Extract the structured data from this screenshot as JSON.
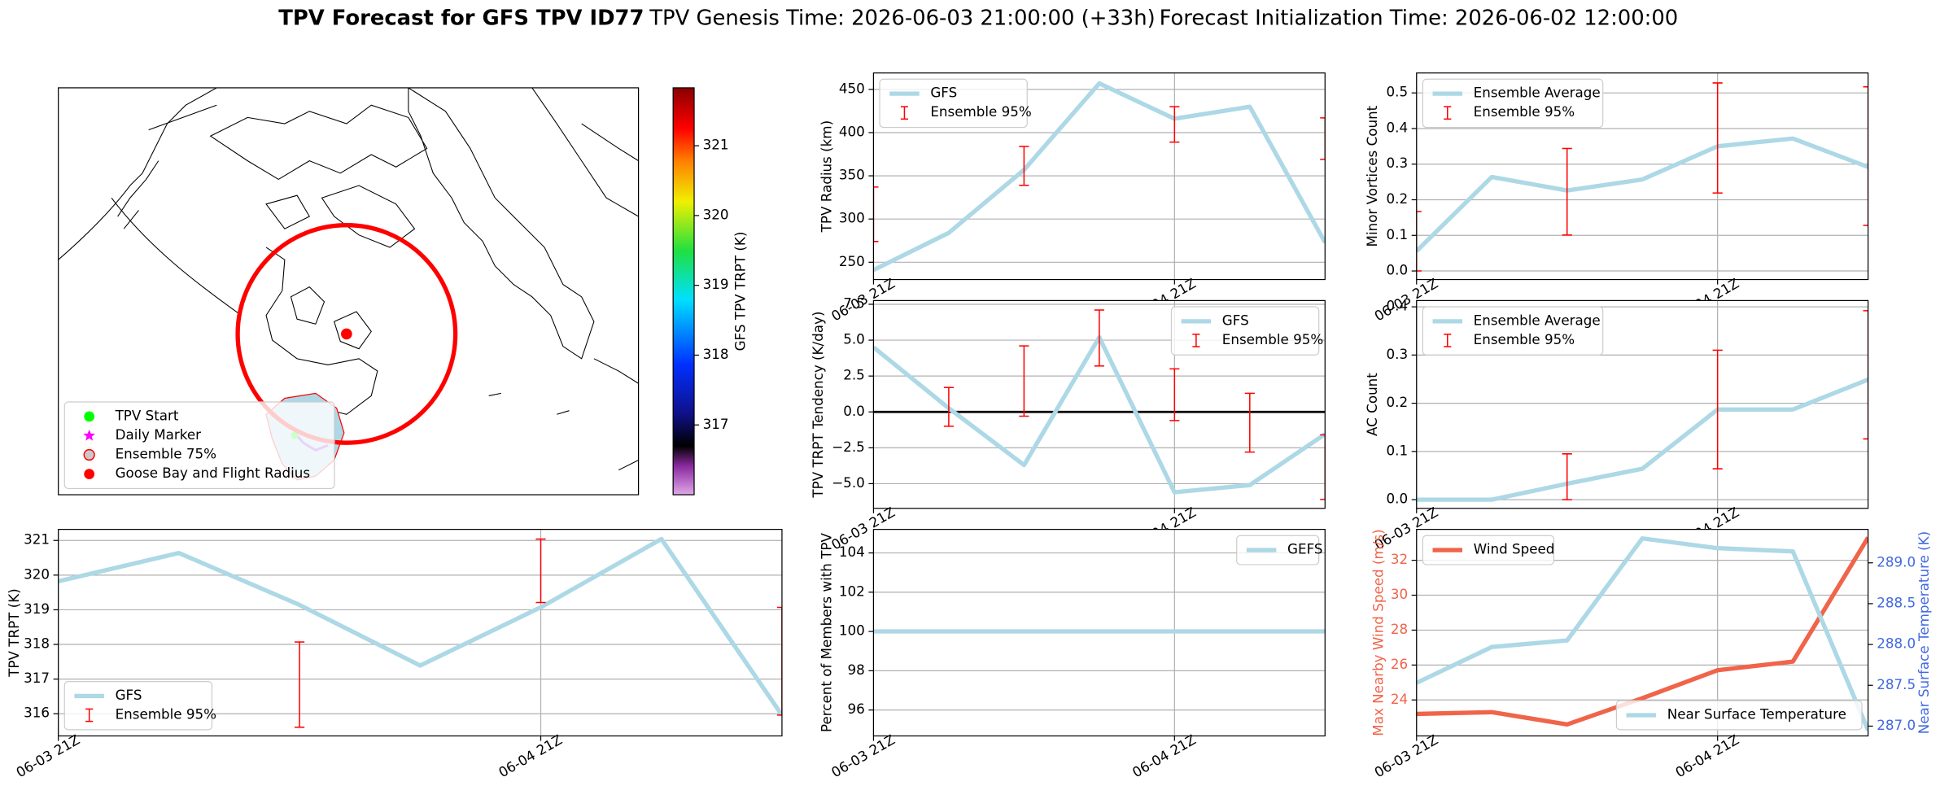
{
  "header": {
    "title": "TPV Forecast for GFS TPV ID77",
    "genesis": "TPV Genesis Time: 2026-06-03 21:00:00 (+33h)",
    "initialization": "Forecast Initialization Time: 2026-06-02 12:00:00"
  },
  "chart_data": [
    {
      "type": "map",
      "legend": "lower left",
      "series": [
        {
          "name": "TPV Start",
          "color": "#00ff00",
          "marker": "circle"
        },
        {
          "name": "Daily Marker",
          "color": "#ff00ff",
          "marker": "star"
        },
        {
          "name": "Ensemble 75%",
          "color": "#c9c9c9",
          "edgecolor": "#ff0000",
          "marker": "circle"
        },
        {
          "name": "Goose Bay and Flight Radius",
          "color": "#ff0000",
          "marker": "circle"
        }
      ],
      "colorbar": {
        "label": "GFS TPV TRPT (K)",
        "lim": [
          316.0,
          321.83
        ],
        "ticks": [
          317,
          318,
          319,
          320,
          321
        ]
      }
    },
    {
      "type": "line",
      "ylabel": "TPV Radius (km)",
      "categories": [
        "06-03 21Z",
        null,
        null,
        null,
        "06-04 21Z",
        null,
        null
      ],
      "legend": "upper left",
      "grid": true,
      "series": [
        {
          "name": "GFS",
          "color": "#add8e6",
          "values": [
            241,
            284,
            357,
            457,
            416,
            430,
            273
          ]
        },
        {
          "name": "Ensemble 95%",
          "type": "errorbar",
          "color": "#ff0000",
          "lower": [
            274,
            null,
            339,
            null,
            389,
            null,
            369
          ],
          "upper": [
            337,
            null,
            384,
            null,
            430,
            null,
            417
          ]
        }
      ],
      "ylim": [
        230,
        469
      ],
      "yticks": [
        250,
        300,
        350,
        400,
        450
      ]
    },
    {
      "type": "line",
      "ylabel": "Minor Vortices Count",
      "categories": [
        "06-03 21Z",
        null,
        null,
        null,
        "06-04 21Z",
        null,
        null
      ],
      "legend": "upper left",
      "grid": true,
      "series": [
        {
          "name": "Ensemble Average",
          "color": "#add8e6",
          "values": [
            0.056,
            0.264,
            0.226,
            0.257,
            0.35,
            0.372,
            0.292
          ]
        },
        {
          "name": "Ensemble 95%",
          "type": "errorbar",
          "color": "#ff0000",
          "lower": [
            0,
            null,
            0.101,
            null,
            0.219,
            null,
            0.128
          ],
          "upper": [
            0.167,
            null,
            0.344,
            null,
            0.528,
            null,
            0.517
          ]
        }
      ],
      "ylim": [
        -0.024,
        0.556
      ],
      "yticks": [
        {
          "value": 0,
          "label": "0.0"
        },
        0.1,
        0.2,
        0.3,
        0.4,
        0.5
      ]
    },
    {
      "type": "line",
      "ylabel": "TPV TRPT Tendency (K/day)",
      "categories": [
        "06-03 21Z",
        null,
        null,
        null,
        "06-04 21Z",
        null,
        null
      ],
      "legend": "upper right",
      "grid": true,
      "hline": 0,
      "series": [
        {
          "name": "GFS",
          "color": "#add8e6",
          "values": [
            4.5,
            0.26,
            -3.7,
            5.2,
            -5.6,
            -5.1,
            -1.55
          ]
        },
        {
          "name": "Ensemble 95%",
          "type": "errorbar",
          "color": "#ff0000",
          "lower": [
            null,
            -1.0,
            -0.3,
            3.2,
            -0.6,
            -2.8,
            -6.1
          ],
          "upper": [
            null,
            1.7,
            4.6,
            7.1,
            3.0,
            1.3,
            -1.6
          ]
        }
      ],
      "ylim": [
        -6.72,
        7.76
      ],
      "yticks": [
        {
          "value": -5,
          "label": "−5.0"
        },
        {
          "value": -2.5,
          "label": "−2.5"
        },
        {
          "value": 0,
          "label": "0.0"
        },
        2.5,
        {
          "value": 5,
          "label": "5.0"
        },
        7.5
      ]
    },
    {
      "type": "line",
      "ylabel": "AC Count",
      "categories": [
        "06-03 21Z",
        null,
        null,
        null,
        "06-04 21Z",
        null,
        null
      ],
      "legend": "upper left",
      "grid": true,
      "series": [
        {
          "name": "Ensemble Average",
          "color": "#add8e6",
          "values": [
            0,
            0,
            0.033,
            0.064,
            0.187,
            0.187,
            0.249
          ]
        },
        {
          "name": "Ensemble 95%",
          "type": "errorbar",
          "color": "#ff0000",
          "lower": [
            null,
            null,
            0,
            null,
            0.064,
            null,
            0.126
          ],
          "upper": [
            null,
            null,
            0.095,
            null,
            0.31,
            null,
            0.392
          ]
        }
      ],
      "ylim": [
        -0.018,
        0.413
      ],
      "yticks": [
        {
          "value": 0,
          "label": "0.0"
        },
        0.1,
        0.2,
        0.3,
        0.4
      ]
    },
    {
      "type": "line",
      "ylabel": "TPV TRPT (K)",
      "categories": [
        "06-03 21Z",
        null,
        null,
        null,
        "06-04 21Z",
        null,
        null
      ],
      "legend": "lower left",
      "grid": true,
      "series": [
        {
          "name": "GFS",
          "color": "#add8e6",
          "values": [
            319.82,
            320.64,
            319.14,
            317.39,
            319.07,
            321.04,
            315.96
          ]
        },
        {
          "name": "Ensemble 95%",
          "type": "errorbar",
          "color": "#ff0000",
          "lower": [
            null,
            null,
            315.61,
            null,
            319.21,
            null,
            315.96
          ],
          "upper": [
            null,
            null,
            318.07,
            null,
            321.04,
            null,
            319.07
          ]
        }
      ],
      "ylim": [
        315.36,
        321.32
      ],
      "yticks": [
        316,
        317,
        318,
        319,
        320,
        321
      ]
    },
    {
      "type": "line",
      "ylabel": "Percent of Members with TPV",
      "categories": [
        "06-03 21Z",
        null,
        null,
        null,
        "06-04 21Z",
        null,
        null
      ],
      "legend": "upper right",
      "grid": true,
      "series": [
        {
          "name": "GEFS",
          "color": "#add8e6",
          "values": [
            100,
            100,
            100,
            100,
            100,
            100,
            100
          ]
        }
      ],
      "ylim": [
        94.68,
        105.2
      ],
      "yticks": [
        96,
        98,
        100,
        102,
        104
      ]
    },
    {
      "type": "line",
      "ylabel": "Max Nearby Wind Speed (m/s)",
      "ylabel_color": "#f0644a",
      "y2label": "Near Surface Temperature (K)",
      "y2label_color": "#4169e1",
      "categories": [
        "06-03 21Z",
        null,
        null,
        null,
        "06-04 21Z",
        null,
        null
      ],
      "legend": "upper left",
      "grid": true,
      "series": [
        {
          "name": "Wind Speed",
          "color": "#f0644a",
          "values": [
            23.2,
            23.3,
            22.6,
            24.1,
            25.7,
            26.2,
            33.3
          ]
        },
        {
          "name": "Near Surface Temperature",
          "color": "#add8e6",
          "axis": "y2",
          "legend": "lower right",
          "values": [
            287.53,
            287.97,
            288.05,
            289.3,
            289.18,
            289.14,
            286.95
          ]
        }
      ],
      "ylim": [
        21.94,
        33.77
      ],
      "yticks": [
        24,
        26,
        28,
        30,
        32
      ],
      "y2lim": [
        286.88,
        289.41
      ],
      "y2ticks": [
        {
          "value": 287,
          "label": "287.0"
        },
        287.5,
        {
          "value": 288,
          "label": "288.0"
        },
        288.5,
        {
          "value": 289,
          "label": "289.0"
        }
      ]
    }
  ]
}
